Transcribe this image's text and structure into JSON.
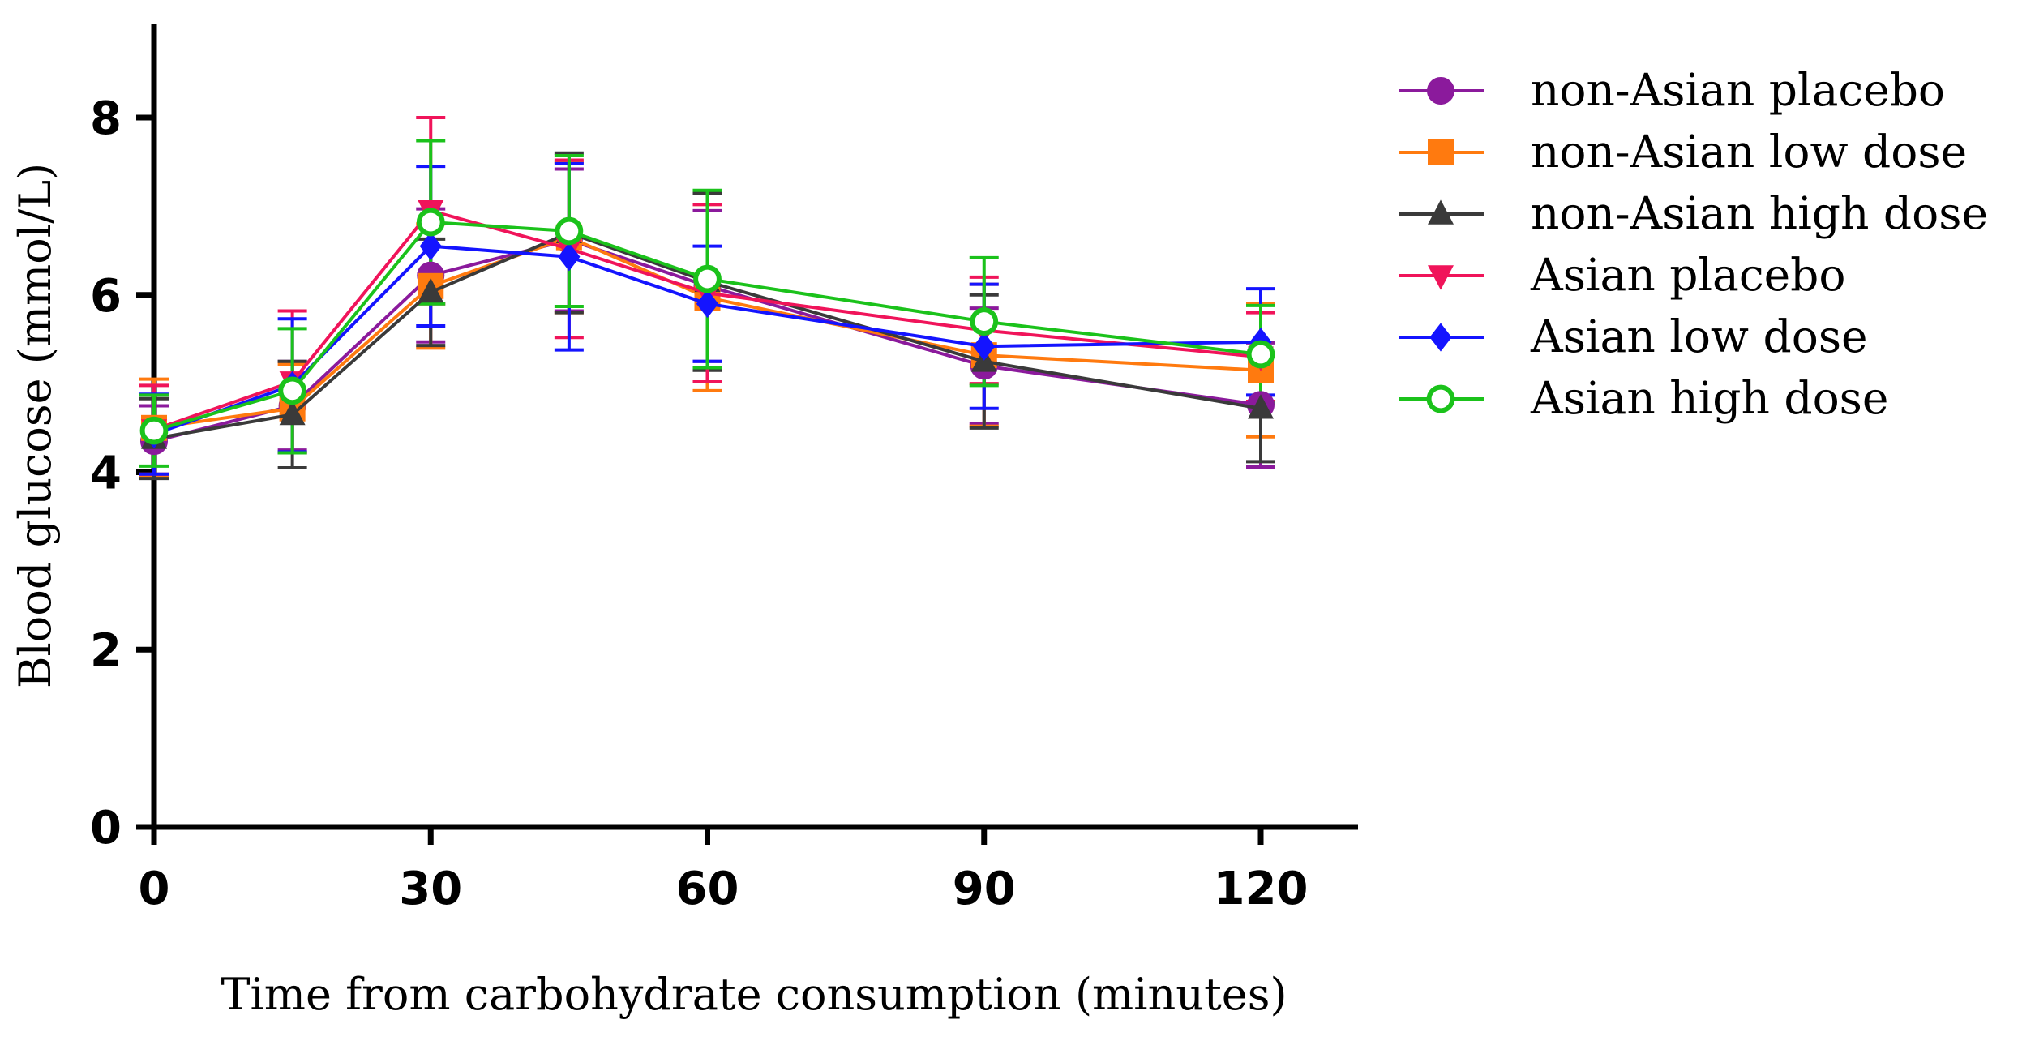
{
  "chart_data": {
    "type": "line",
    "title": "",
    "xlabel": "Time from carbohydrate consumption (minutes)",
    "ylabel": "Blood glucose (mmol/L)",
    "x": [
      0,
      15,
      30,
      45,
      60,
      90,
      120
    ],
    "xlim": [
      0,
      130
    ],
    "ylim": [
      0,
      9
    ],
    "xticks": [
      0,
      30,
      60,
      90,
      120
    ],
    "xtick_labels": [
      "0",
      "30",
      "60",
      "90",
      "120"
    ],
    "yticks": [
      0,
      2,
      4,
      6,
      8
    ],
    "ytick_labels": [
      "0",
      "2",
      "4",
      "6",
      "8"
    ],
    "legend_position": "right",
    "series": [
      {
        "name": "non-Asian placebo",
        "color": "#8B1A9C",
        "marker": "circle",
        "values": [
          4.35,
          4.75,
          6.22,
          6.62,
          6.1,
          5.2,
          4.76
        ],
        "errors": [
          0.4,
          0.5,
          0.75,
          0.8,
          0.85,
          0.65,
          0.7
        ]
      },
      {
        "name": "non-Asian low dose",
        "color": "#FF7A0F",
        "marker": "square",
        "values": [
          4.5,
          4.72,
          6.1,
          6.65,
          5.97,
          5.32,
          5.15
        ],
        "errors": [
          0.55,
          0.5,
          0.7,
          0.85,
          1.05,
          0.8,
          0.75
        ]
      },
      {
        "name": "non-Asian high dose",
        "color": "#3A3A3A",
        "marker": "triangle-up",
        "values": [
          4.38,
          4.65,
          6.03,
          6.7,
          6.15,
          5.25,
          4.72
        ],
        "errors": [
          0.45,
          0.6,
          0.6,
          0.9,
          1.0,
          0.75,
          0.6
        ]
      },
      {
        "name": "Asian placebo",
        "color": "#F0145A",
        "marker": "triangle-down",
        "values": [
          4.48,
          5.02,
          6.95,
          6.52,
          6.02,
          5.6,
          5.3
        ],
        "errors": [
          0.5,
          0.8,
          1.05,
          1.0,
          1.0,
          0.6,
          0.5
        ]
      },
      {
        "name": "Asian low dose",
        "color": "#1414FF",
        "marker": "diamond",
        "values": [
          4.43,
          4.98,
          6.55,
          6.43,
          5.9,
          5.42,
          5.47
        ],
        "errors": [
          0.45,
          0.75,
          0.9,
          1.05,
          0.65,
          0.7,
          0.6
        ]
      },
      {
        "name": "Asian high dose",
        "color": "#1BC21B",
        "marker": "open-circle",
        "values": [
          4.47,
          4.92,
          6.82,
          6.72,
          6.18,
          5.7,
          5.33
        ],
        "errors": [
          0.4,
          0.7,
          0.92,
          0.85,
          1.0,
          0.72,
          0.55
        ]
      }
    ]
  }
}
